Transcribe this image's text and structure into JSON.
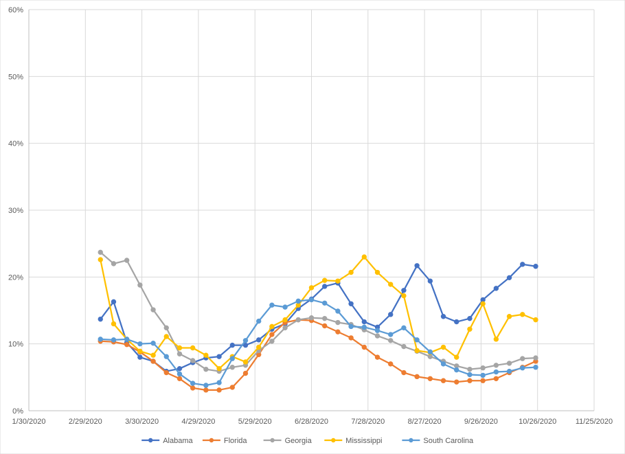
{
  "chart_data": {
    "type": "line",
    "title": "",
    "xlabel": "",
    "ylabel": "",
    "x_tick_labels": [
      "1/30/2020",
      "2/29/2020",
      "3/30/2020",
      "4/29/2020",
      "5/29/2020",
      "6/28/2020",
      "7/28/2020",
      "8/27/2020",
      "9/26/2020",
      "10/26/2020",
      "11/25/2020"
    ],
    "x_ticks": [
      "2020-01-30",
      "2020-02-29",
      "2020-03-30",
      "2020-04-29",
      "2020-05-29",
      "2020-06-28",
      "2020-07-28",
      "2020-08-27",
      "2020-09-26",
      "2020-10-26",
      "2020-11-25"
    ],
    "xlim": [
      "2020-01-30",
      "2020-11-25"
    ],
    "y_tick_labels": [
      "0%",
      "10%",
      "20%",
      "30%",
      "40%",
      "50%",
      "60%"
    ],
    "ylim": [
      0,
      60
    ],
    "grid": true,
    "legend_position": "bottom",
    "x": [
      "2020-03-08",
      "2020-03-15",
      "2020-03-22",
      "2020-03-29",
      "2020-04-05",
      "2020-04-12",
      "2020-04-19",
      "2020-04-26",
      "2020-05-03",
      "2020-05-10",
      "2020-05-17",
      "2020-05-24",
      "2020-05-31",
      "2020-06-07",
      "2020-06-14",
      "2020-06-21",
      "2020-06-28",
      "2020-07-05",
      "2020-07-12",
      "2020-07-19",
      "2020-07-26",
      "2020-08-02",
      "2020-08-09",
      "2020-08-16",
      "2020-08-23",
      "2020-08-30",
      "2020-09-06",
      "2020-09-13",
      "2020-09-20",
      "2020-09-27",
      "2020-10-04",
      "2020-10-11",
      "2020-10-18",
      "2020-10-25"
    ],
    "series": [
      {
        "name": "Alabama",
        "color": "#4472c4",
        "values": [
          13.7,
          16.3,
          10.2,
          8.0,
          7.4,
          5.9,
          6.3,
          7.2,
          7.9,
          8.1,
          9.8,
          9.8,
          10.6,
          12.2,
          13.0,
          15.3,
          16.7,
          18.6,
          19.1,
          16.0,
          13.3,
          12.5,
          14.4,
          18.0,
          21.7,
          19.4,
          14.1,
          13.3,
          13.8,
          16.6,
          18.3,
          19.9,
          21.9,
          21.6
        ]
      },
      {
        "name": "Florida",
        "color": "#ed7d31",
        "values": [
          10.4,
          10.3,
          9.9,
          8.8,
          7.4,
          5.7,
          4.8,
          3.4,
          3.1,
          3.1,
          3.5,
          5.6,
          8.4,
          11.4,
          13.2,
          13.6,
          13.5,
          12.7,
          11.8,
          10.9,
          9.5,
          8.0,
          7.0,
          5.7,
          5.1,
          4.8,
          4.5,
          4.3,
          4.5,
          4.5,
          4.8,
          5.7,
          6.5,
          7.4
        ]
      },
      {
        "name": "Georgia",
        "color": "#a5a5a5",
        "values": [
          23.7,
          22.0,
          22.5,
          18.8,
          15.1,
          12.4,
          8.5,
          7.5,
          6.2,
          5.9,
          6.5,
          6.8,
          9.0,
          10.4,
          12.4,
          13.6,
          13.9,
          13.8,
          13.2,
          12.9,
          12.1,
          11.2,
          10.5,
          9.6,
          8.9,
          8.1,
          7.4,
          6.7,
          6.2,
          6.4,
          6.8,
          7.1,
          7.8,
          7.9
        ]
      },
      {
        "name": "Mississippi",
        "color": "#ffc000",
        "values": [
          22.6,
          13.0,
          10.7,
          8.9,
          8.3,
          11.1,
          9.4,
          9.4,
          8.3,
          6.3,
          8.1,
          7.3,
          9.5,
          12.6,
          13.6,
          15.8,
          18.4,
          19.5,
          19.4,
          20.7,
          23.0,
          20.7,
          18.9,
          17.2,
          9.0,
          8.7,
          9.5,
          8.0,
          12.2,
          16.0,
          10.7,
          14.1,
          14.4,
          13.6
        ]
      },
      {
        "name": "South Carolina",
        "color": "#5b9bd5",
        "values": [
          10.7,
          10.6,
          10.7,
          10.0,
          10.1,
          8.1,
          5.5,
          4.1,
          3.8,
          4.2,
          7.8,
          10.5,
          13.4,
          15.8,
          15.5,
          16.4,
          16.6,
          16.1,
          14.9,
          12.6,
          12.5,
          12.0,
          11.4,
          12.4,
          10.6,
          8.8,
          7.0,
          6.1,
          5.4,
          5.3,
          5.8,
          5.9,
          6.4,
          6.5
        ]
      }
    ]
  }
}
